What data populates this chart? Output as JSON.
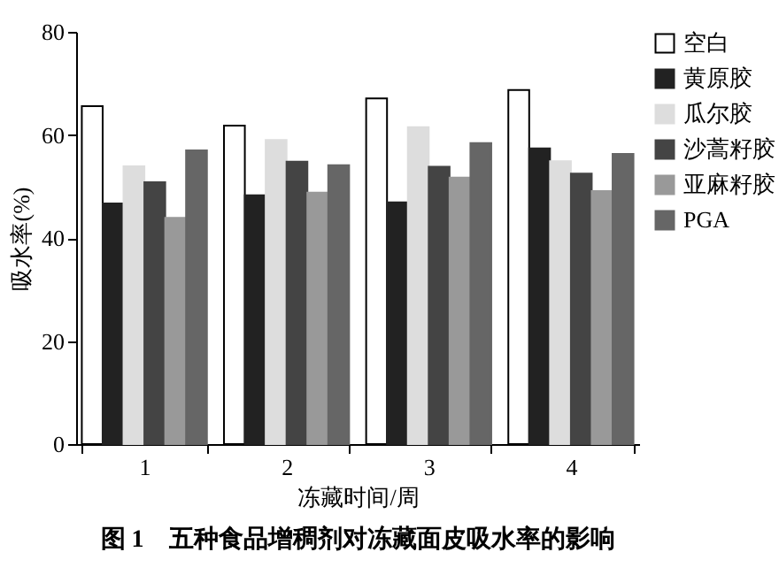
{
  "chart_data": {
    "type": "bar",
    "title": "图 1　五种食品增稠剂对冻藏面皮吸水率的影响",
    "xlabel": "冻藏时间/周",
    "ylabel": "吸水率(%)",
    "categories": [
      "1",
      "2",
      "3",
      "4"
    ],
    "series": [
      {
        "name": "空白",
        "color": "#ffffff",
        "values": [
          65.6,
          61.8,
          67.1,
          68.7
        ]
      },
      {
        "name": "黄原胶",
        "color": "#222222",
        "values": [
          46.7,
          48.3,
          46.9,
          57.4
        ]
      },
      {
        "name": "瓜尔胶",
        "color": "#dddddd",
        "values": [
          53.9,
          59.0,
          61.5,
          54.9
        ]
      },
      {
        "name": "沙蒿籽胶",
        "color": "#444444",
        "values": [
          50.8,
          54.8,
          53.8,
          52.5
        ]
      },
      {
        "name": "亚麻籽胶",
        "color": "#999999",
        "values": [
          43.9,
          48.8,
          51.7,
          49.1
        ]
      },
      {
        "name": "PGA",
        "color": "#666666",
        "values": [
          57.0,
          54.1,
          58.4,
          56.3
        ]
      }
    ],
    "ylim": [
      0,
      80
    ],
    "yticks": [
      0,
      20,
      40,
      60,
      80
    ],
    "grid": false,
    "legend": "top right"
  }
}
